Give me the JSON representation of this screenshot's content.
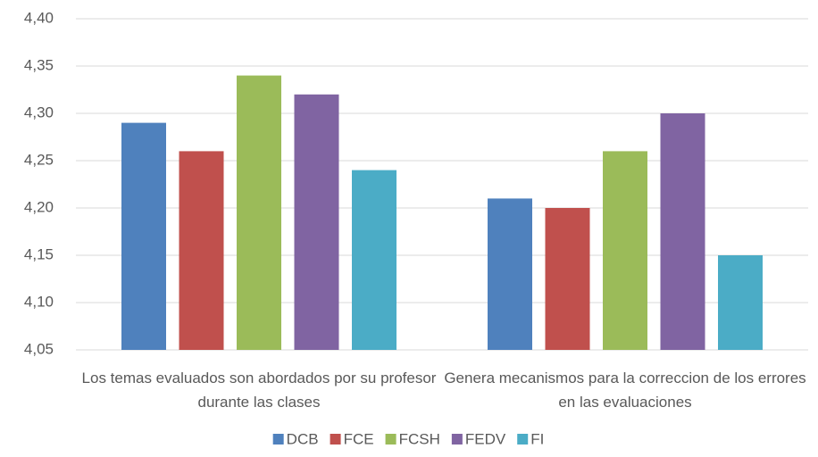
{
  "chart_data": {
    "type": "bar",
    "categories": [
      "Los temas evaluados son abordados por su profesor durante las clases",
      "Genera mecanismos para la correccion de los errores en las evaluaciones"
    ],
    "series": [
      {
        "name": "DCB",
        "color": "#4f81bd",
        "values": [
          4.29,
          4.21
        ]
      },
      {
        "name": "FCE",
        "color": "#c0504d",
        "values": [
          4.26,
          4.2
        ]
      },
      {
        "name": "FCSH",
        "color": "#9bbb59",
        "values": [
          4.34,
          4.26
        ]
      },
      {
        "name": "FEDV",
        "color": "#8064a2",
        "values": [
          4.32,
          4.3
        ]
      },
      {
        "name": "FI",
        "color": "#4bacc6",
        "values": [
          4.24,
          4.15
        ]
      }
    ],
    "ylim": [
      4.05,
      4.4
    ],
    "yticks": [
      {
        "value": 4.05,
        "label": "4,05"
      },
      {
        "value": 4.1,
        "label": "4,10"
      },
      {
        "value": 4.15,
        "label": "4,15"
      },
      {
        "value": 4.2,
        "label": "4,20"
      },
      {
        "value": 4.25,
        "label": "4,25"
      },
      {
        "value": 4.3,
        "label": "4,30"
      },
      {
        "value": 4.35,
        "label": "4,35"
      },
      {
        "value": 4.4,
        "label": "4,40"
      }
    ],
    "grid": true,
    "legend": "bottom"
  }
}
